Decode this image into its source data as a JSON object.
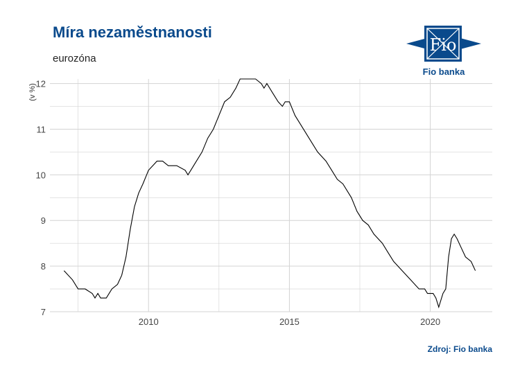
{
  "header": {
    "title": "Míra nezaměstnanosti",
    "subtitle": "eurozóna"
  },
  "logo": {
    "brand_text": "Fio banka",
    "mark_text": "Fio"
  },
  "footer": {
    "source": "Zdroj: Fio banka"
  },
  "colors": {
    "brand": "#0a4a8c",
    "line": "#000000",
    "grid": "#d3d3d3"
  },
  "chart_data": {
    "type": "line",
    "title": "Míra nezaměstnanosti",
    "subtitle": "eurozóna",
    "xlabel": "",
    "ylabel": "(v %)",
    "xlim": [
      2006.5,
      2022.2
    ],
    "ylim": [
      7,
      12.1
    ],
    "x_ticks": [
      2010,
      2015,
      2020
    ],
    "y_ticks": [
      7,
      8,
      9,
      10,
      11,
      12
    ],
    "grid": true,
    "legend": "none",
    "series": [
      {
        "points": [
          [
            2007.0,
            7.9
          ],
          [
            2007.3,
            7.7
          ],
          [
            2007.5,
            7.5
          ],
          [
            2007.75,
            7.5
          ],
          [
            2008.0,
            7.4
          ],
          [
            2008.1,
            7.3
          ],
          [
            2008.2,
            7.4
          ],
          [
            2008.3,
            7.3
          ],
          [
            2008.5,
            7.3
          ],
          [
            2008.7,
            7.5
          ],
          [
            2008.9,
            7.6
          ],
          [
            2009.05,
            7.8
          ],
          [
            2009.2,
            8.2
          ],
          [
            2009.35,
            8.8
          ],
          [
            2009.5,
            9.3
          ],
          [
            2009.65,
            9.6
          ],
          [
            2009.8,
            9.8
          ],
          [
            2010.0,
            10.1
          ],
          [
            2010.15,
            10.2
          ],
          [
            2010.3,
            10.3
          ],
          [
            2010.5,
            10.3
          ],
          [
            2010.7,
            10.2
          ],
          [
            2011.0,
            10.2
          ],
          [
            2011.3,
            10.1
          ],
          [
            2011.4,
            10.0
          ],
          [
            2011.5,
            10.1
          ],
          [
            2011.7,
            10.3
          ],
          [
            2011.9,
            10.5
          ],
          [
            2012.1,
            10.8
          ],
          [
            2012.3,
            11.0
          ],
          [
            2012.5,
            11.3
          ],
          [
            2012.7,
            11.6
          ],
          [
            2012.9,
            11.7
          ],
          [
            2013.1,
            11.9
          ],
          [
            2013.25,
            12.1
          ],
          [
            2013.5,
            12.1
          ],
          [
            2013.8,
            12.1
          ],
          [
            2014.0,
            12.0
          ],
          [
            2014.1,
            11.9
          ],
          [
            2014.2,
            12.0
          ],
          [
            2014.4,
            11.8
          ],
          [
            2014.6,
            11.6
          ],
          [
            2014.75,
            11.5
          ],
          [
            2014.85,
            11.6
          ],
          [
            2015.0,
            11.6
          ],
          [
            2015.2,
            11.3
          ],
          [
            2015.4,
            11.1
          ],
          [
            2015.6,
            10.9
          ],
          [
            2015.8,
            10.7
          ],
          [
            2016.0,
            10.5
          ],
          [
            2016.3,
            10.3
          ],
          [
            2016.5,
            10.1
          ],
          [
            2016.7,
            9.9
          ],
          [
            2016.9,
            9.8
          ],
          [
            2017.2,
            9.5
          ],
          [
            2017.4,
            9.2
          ],
          [
            2017.6,
            9.0
          ],
          [
            2017.8,
            8.9
          ],
          [
            2018.0,
            8.7
          ],
          [
            2018.3,
            8.5
          ],
          [
            2018.5,
            8.3
          ],
          [
            2018.7,
            8.1
          ],
          [
            2019.0,
            7.9
          ],
          [
            2019.3,
            7.7
          ],
          [
            2019.6,
            7.5
          ],
          [
            2019.8,
            7.5
          ],
          [
            2019.9,
            7.4
          ],
          [
            2020.1,
            7.4
          ],
          [
            2020.2,
            7.3
          ],
          [
            2020.3,
            7.1
          ],
          [
            2020.45,
            7.4
          ],
          [
            2020.55,
            7.5
          ],
          [
            2020.65,
            8.2
          ],
          [
            2020.75,
            8.6
          ],
          [
            2020.85,
            8.7
          ],
          [
            2020.95,
            8.6
          ],
          [
            2021.1,
            8.4
          ],
          [
            2021.25,
            8.2
          ],
          [
            2021.45,
            8.1
          ],
          [
            2021.6,
            7.9
          ]
        ]
      }
    ]
  }
}
